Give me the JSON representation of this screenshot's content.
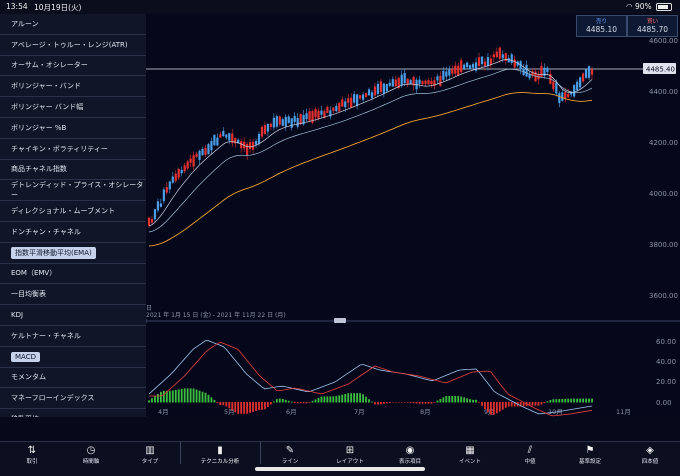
{
  "status": {
    "time": "13:54",
    "date": "10月19日(火)",
    "battery": "90%"
  },
  "menu": {
    "items": [
      {
        "label": "アルーン",
        "selected": false
      },
      {
        "label": "アベレージ・トゥルー・レンジ(ATR)",
        "selected": false
      },
      {
        "label": "オーサム・オシレーター",
        "selected": false
      },
      {
        "label": "ボリンジャー・バンド",
        "selected": false
      },
      {
        "label": "ボリンジャー バンド幅",
        "selected": false
      },
      {
        "label": "ボリンジャー %B",
        "selected": false
      },
      {
        "label": "チャイキン・ボラティリティー",
        "selected": false
      },
      {
        "label": "商品チャネル指数",
        "selected": false
      },
      {
        "label": "デトレンディッド・プライス・オシレーター",
        "selected": false
      },
      {
        "label": "ディレクショナル・ムーブメント",
        "selected": false
      },
      {
        "label": "ドンチャン・チャネル",
        "selected": false
      },
      {
        "label": "指数平滑移動平均(EMA)",
        "selected": true
      },
      {
        "label": "EOM（EMV）",
        "selected": false
      },
      {
        "label": "一目均衡表",
        "selected": false
      },
      {
        "label": "KDJ",
        "selected": false
      },
      {
        "label": "ケルトナー・チャネル",
        "selected": false
      },
      {
        "label": "MACD",
        "selected": true
      },
      {
        "label": "モメンタム",
        "selected": false
      },
      {
        "label": "マネーフローインデックス",
        "selected": false
      },
      {
        "label": "移動平均",
        "selected": false
      }
    ]
  },
  "quotes": {
    "bid": {
      "label": "売り",
      "value": "4485.10"
    },
    "ask": {
      "label": "買い",
      "value": "4485.70"
    }
  },
  "chart": {
    "current_price": "4485.40",
    "period_label": "2021 年 1月 15 日 (金) - 2021 年 11月 22 日 (月)",
    "period_prefix": "日",
    "price_ticks": [
      "4600.00",
      "4400.00",
      "4200.00",
      "4000.00",
      "3800.00",
      "3600.00"
    ],
    "macd_ticks": [
      "60.00",
      "40.00",
      "20.00",
      "0.00"
    ],
    "months": [
      "4月",
      "5月",
      "6月",
      "7月",
      "8月",
      "9月",
      "10月",
      "11月"
    ],
    "colors": {
      "up": "#e53030",
      "down": "#4a9ee8",
      "ema_slow": "#f0a030",
      "line_a": "#c8d0e0",
      "macd_signal": "#e54040",
      "hist_pos": "#3cc040",
      "hist_neg": "#e03030"
    }
  },
  "tabs": [
    {
      "label": "取引",
      "icon": "⇅"
    },
    {
      "label": "時間軸",
      "icon": "◷"
    },
    {
      "label": "タイプ",
      "icon": "▥"
    },
    {
      "label": "テクニカル分析",
      "icon": "▮"
    },
    {
      "label": "ライン",
      "icon": "✎"
    },
    {
      "label": "レイアウト",
      "icon": "⊞"
    },
    {
      "label": "表示項目",
      "icon": "◉"
    },
    {
      "label": "イベント",
      "icon": "▦"
    },
    {
      "label": "中値",
      "icon": "⫽"
    },
    {
      "label": "基準設定",
      "icon": "⚑"
    },
    {
      "label": "四本値",
      "icon": "◈"
    }
  ]
}
